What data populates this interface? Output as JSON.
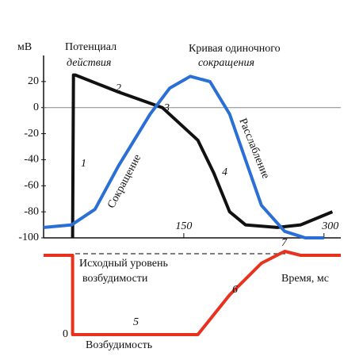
{
  "chart_data": {
    "type": "line",
    "y_label": "мВ",
    "x_label": "Время, мс",
    "xlim": [
      0,
      318
    ],
    "xticks": [
      150,
      300
    ],
    "ylim": [
      -100,
      40
    ],
    "yticks": [
      20,
      0,
      -20,
      -40,
      -60,
      -80,
      -100
    ],
    "y2lim": [
      0,
      1.1
    ],
    "y2ticks": [
      0
    ],
    "annotations": [
      "Потенциал",
      "действия",
      "Кривая одиночного",
      "сокращения",
      "Сокращение",
      "Расслабление",
      "Исходный уровень",
      "возбудимости",
      "Возбудимость",
      "1",
      "2",
      "3",
      "4",
      "5",
      "6",
      "7"
    ],
    "series": [
      {
        "color": "#111111",
        "x": [
          31,
          32,
          34,
          80,
          127,
          165,
          182,
          199,
          216,
          250,
          275,
          309
        ],
        "values": [
          -100,
          25,
          25,
          12,
          0,
          -25,
          -50,
          -80,
          -90,
          -92,
          -90,
          -80
        ]
      },
      {
        "color": "#2a6fd6",
        "x": [
          0,
          30,
          55,
          80,
          114,
          135,
          157,
          178,
          199,
          216,
          233,
          258,
          280,
          300
        ],
        "values": [
          -92,
          -90,
          -78,
          -45,
          -5,
          15,
          24,
          20,
          -5,
          -40,
          -75,
          -95,
          -100,
          -100
        ]
      },
      {
        "color": "#e8321e",
        "axis": "y2",
        "x": [
          0,
          31,
          31,
          165,
          199,
          233,
          258,
          275,
          318
        ],
        "values": [
          1,
          1,
          0,
          0,
          0.5,
          0.9,
          1.05,
          1,
          1
        ]
      }
    ]
  }
}
